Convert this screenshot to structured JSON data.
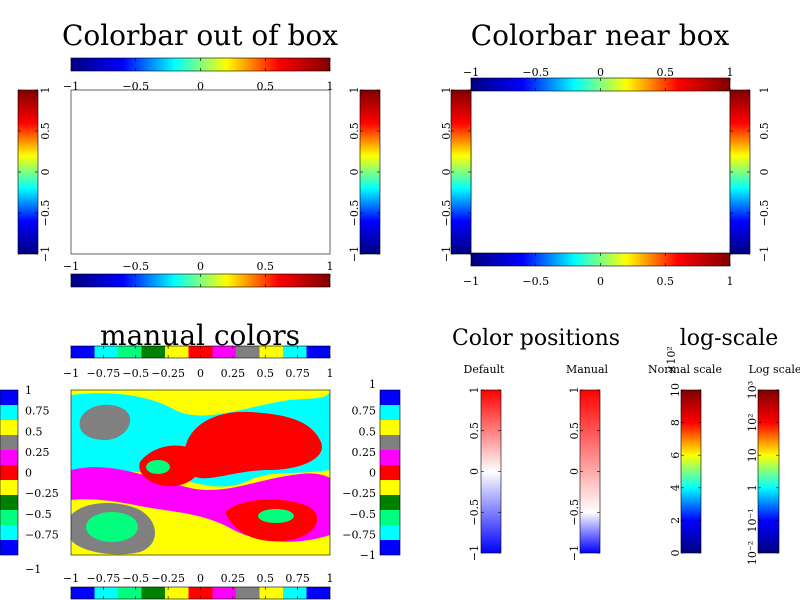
{
  "titles": {
    "top_left": "Colorbar out of box",
    "top_right": "Colorbar near box",
    "bottom_left": "manual colors",
    "positions": "Color positions",
    "log": "log-scale"
  },
  "colorbar_labels": {
    "default": "Default",
    "manual": "Manual",
    "normal": "Normal scale",
    "log": "Log scale"
  },
  "chart_data": [
    {
      "type": "colorbar",
      "panel": "top-left",
      "title": "Colorbar out of box",
      "range": [
        -1,
        1
      ],
      "ticks": [
        "−1",
        "−0.5",
        "0",
        "0.5",
        "1"
      ],
      "colormap": "jet",
      "colors": [
        "#00007f",
        "#0000ff",
        "#00ffff",
        "#ffff00",
        "#ff0000",
        "#7f0000"
      ],
      "placement": "outside box on all four sides"
    },
    {
      "type": "colorbar",
      "panel": "top-right",
      "title": "Colorbar near box",
      "range": [
        -1,
        1
      ],
      "ticks": [
        "−1",
        "−0.5",
        "0",
        "0.5",
        "1"
      ],
      "colormap": "jet",
      "colors": [
        "#00007f",
        "#0000ff",
        "#00ffff",
        "#ffff00",
        "#ff0000",
        "#7f0000"
      ],
      "placement": "adjacent to box on all four sides"
    },
    {
      "type": "heatmap",
      "panel": "bottom-left",
      "title": "manual colors",
      "range": [
        -1,
        1
      ],
      "ticks": [
        "−1",
        "−0.75",
        "−0.5",
        "−0.25",
        "0",
        "0.25",
        "0.5",
        "0.75",
        "1"
      ],
      "side_ticks_left": [
        "1",
        "0.75",
        "0.5",
        "0.25",
        "0",
        "−0.25",
        "−0.5",
        "−0.75",
        "−1"
      ],
      "manual_colors": [
        "#808080",
        "#00ff7f",
        "#ff0000",
        "#ffff00",
        "#ff00ff",
        "#00ffff"
      ],
      "bar_colors": [
        "#0000ff",
        "#00ffff",
        "#00ff7f",
        "#008000",
        "#ffff00",
        "#ff0000",
        "#ff00ff",
        "#808080",
        "#ffff00",
        "#00ffff",
        "#0000ff"
      ]
    },
    {
      "type": "colorbar",
      "panel": "color-positions-default",
      "label": "Default",
      "range": [
        -1,
        1
      ],
      "ticks": [
        "−1",
        "−0.5",
        "0",
        "0.5",
        "1"
      ],
      "colors": [
        "#0000ff",
        "#ffffff",
        "#ff0000"
      ],
      "color_positions": [
        0,
        0.5,
        1
      ]
    },
    {
      "type": "colorbar",
      "panel": "color-positions-manual",
      "label": "Manual",
      "range": [
        -1,
        1
      ],
      "ticks": [
        "−1",
        "−0.5",
        "0",
        "0.5",
        "1"
      ],
      "colors": [
        "#0000ff",
        "#ffffff",
        "#ff0000"
      ],
      "color_positions": [
        0,
        0.25,
        1
      ]
    },
    {
      "type": "colorbar",
      "panel": "normal-scale",
      "label": "Normal scale",
      "range": [
        0,
        1000
      ],
      "ticks": [
        "0",
        "2",
        "4",
        "6",
        "8",
        "10"
      ],
      "multiplier": "×10²",
      "colormap": "jet",
      "colors": [
        "#00007f",
        "#0000ff",
        "#00ffff",
        "#ffff00",
        "#ff0000",
        "#7f0000"
      ]
    },
    {
      "type": "colorbar",
      "panel": "log-scale",
      "label": "Log scale",
      "range": [
        0.01,
        1000
      ],
      "scale": "log",
      "ticks": [
        "10⁻²",
        "10⁻¹",
        "1",
        "10",
        "10²",
        "10³"
      ],
      "colormap": "jet",
      "colors": [
        "#00007f",
        "#0000ff",
        "#00ffff",
        "#ffff00",
        "#ff0000",
        "#7f0000"
      ]
    }
  ]
}
